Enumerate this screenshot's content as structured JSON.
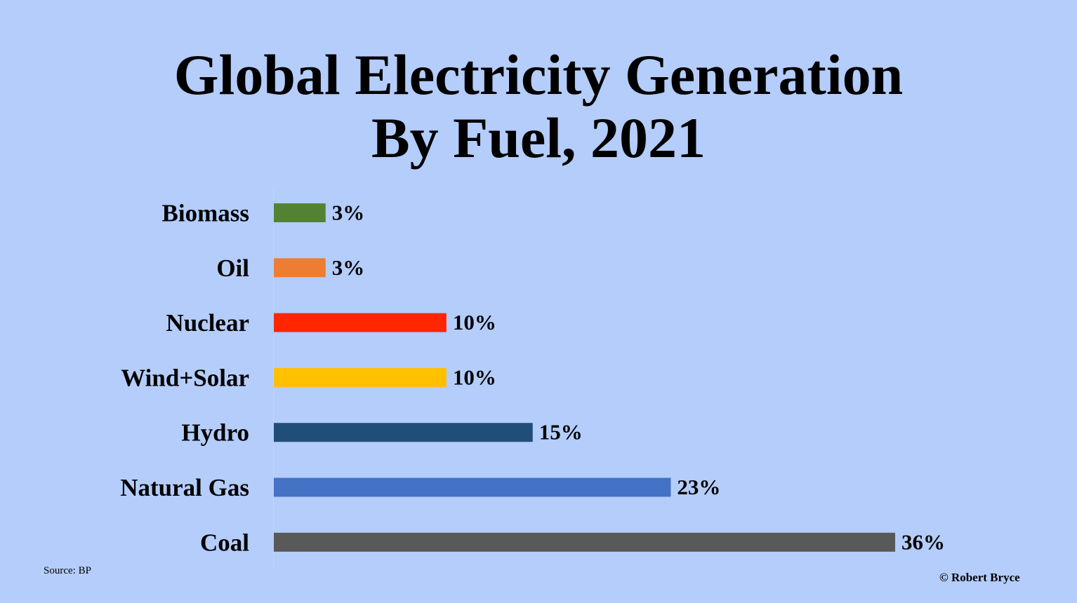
{
  "chart_data": {
    "type": "bar",
    "orientation": "horizontal",
    "title_lines": [
      "Global Electricity Generation",
      "By Fuel, 2021"
    ],
    "categories": [
      "Biomass",
      "Oil",
      "Nuclear",
      "Wind+Solar",
      "Hydro",
      "Natural Gas",
      "Coal"
    ],
    "values": [
      3,
      3,
      10,
      10,
      15,
      23,
      36
    ],
    "value_labels": [
      "3%",
      "3%",
      "10%",
      "10%",
      "15%",
      "23%",
      "36%"
    ],
    "colors": [
      "#548235",
      "#ed7d31",
      "#ff2600",
      "#ffc000",
      "#1f4e79",
      "#4472c4",
      "#595959"
    ],
    "xlabel": "",
    "ylabel": "",
    "xlim": [
      0,
      36
    ],
    "grid": false,
    "legend": "none"
  },
  "footer": {
    "source": "Source: BP",
    "credit": "© Robert Bryce"
  }
}
